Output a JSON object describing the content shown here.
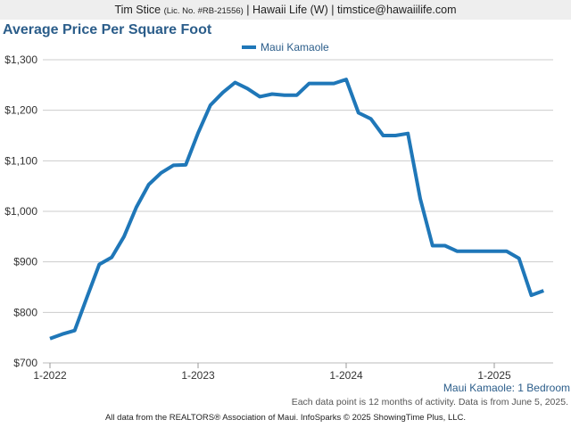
{
  "header": {
    "name": "Tim Stice",
    "license": "(Lic. No. #RB-21556)",
    "rest": "| Hawaii Life (W) | timstice@hawaiilife.com"
  },
  "subtitle": "Maui Kamaole: 1 Bedroom",
  "note": "Each data point is 12 months of activity. Data is from June 5, 2025.",
  "footer": "All data from the REALTORS® Association of Maui. InfoSparks © 2025 ShowingTime Plus, LLC.",
  "chart_data": {
    "type": "line",
    "title": "Average Price Per Square Foot",
    "xlabel": "",
    "ylabel": "",
    "ylim": [
      700,
      1300
    ],
    "yticks": [
      700,
      800,
      900,
      1000,
      1100,
      1200,
      1300
    ],
    "ytick_labels": [
      "$700",
      "$800",
      "$900",
      "$1,000",
      "$1,100",
      "$1,200",
      "$1,300"
    ],
    "xtick_labels": [
      "1-2022",
      "1-2023",
      "1-2024",
      "1-2025"
    ],
    "xtick_dates": [
      "2022-01",
      "2023-01",
      "2024-01",
      "2025-01"
    ],
    "grid": true,
    "legend_position": "top-center",
    "series": [
      {
        "name": "Maui Kamaole",
        "color": "#1f77b8",
        "x": [
          "2022-01",
          "2022-02",
          "2022-03",
          "2022-04",
          "2022-05",
          "2022-06",
          "2022-07",
          "2022-08",
          "2022-09",
          "2022-10",
          "2022-11",
          "2022-12",
          "2023-01",
          "2023-02",
          "2023-03",
          "2023-04",
          "2023-05",
          "2023-06",
          "2023-07",
          "2023-08",
          "2023-09",
          "2023-10",
          "2023-11",
          "2023-12",
          "2024-01",
          "2024-02",
          "2024-03",
          "2024-04",
          "2024-05",
          "2024-06",
          "2024-07",
          "2024-08",
          "2024-09",
          "2024-10",
          "2024-11",
          "2024-12",
          "2025-01",
          "2025-02",
          "2025-03",
          "2025-04",
          "2025-05"
        ],
        "values": [
          748,
          757,
          764,
          830,
          895,
          909,
          950,
          1008,
          1053,
          1076,
          1091,
          1092,
          1155,
          1210,
          1235,
          1255,
          1243,
          1227,
          1232,
          1230,
          1230,
          1253,
          1253,
          1253,
          1261,
          1195,
          1183,
          1150,
          1150,
          1154,
          1025,
          932,
          932,
          921,
          921,
          921,
          921,
          921,
          907,
          834,
          843
        ]
      }
    ]
  }
}
